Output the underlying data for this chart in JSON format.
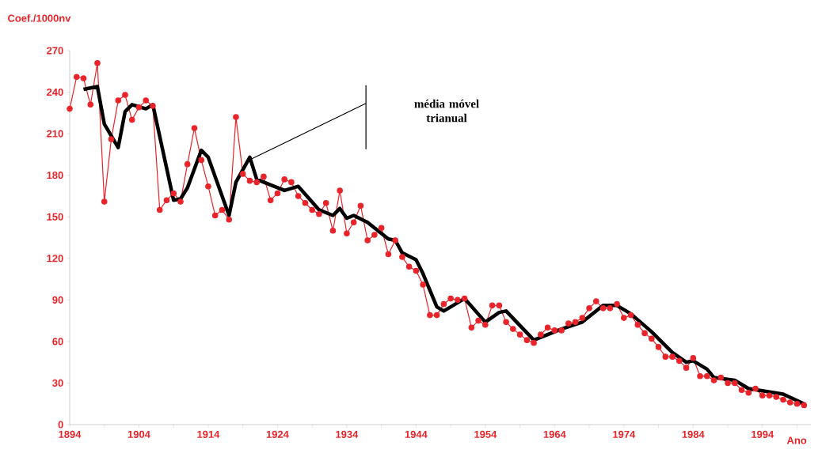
{
  "chart_data": {
    "type": "line",
    "ylabel": "Coef./1000nv",
    "xlabel": "Ano",
    "xlim": [
      1894,
      2001
    ],
    "ylim": [
      0,
      270
    ],
    "xticks": [
      1894,
      {
        "value": 1899,
        "label": null
      },
      1904,
      {
        "value": 1909,
        "label": null
      },
      1914,
      {
        "value": 1919,
        "label": null
      },
      1924,
      {
        "value": 1929,
        "label": null
      },
      1934,
      {
        "value": 1939,
        "label": null
      },
      1944,
      {
        "value": 1949,
        "label": null
      },
      1954,
      {
        "value": 1959,
        "label": null
      },
      1964,
      {
        "value": 1969,
        "label": null
      },
      1974,
      {
        "value": 1979,
        "label": null
      },
      1984,
      {
        "value": 1989,
        "label": null
      },
      1994,
      {
        "value": 1999,
        "label": null
      }
    ],
    "yticks": [
      0,
      30,
      60,
      90,
      120,
      150,
      180,
      210,
      240,
      270
    ],
    "annotations": [
      "média móvel trianual"
    ],
    "series": [
      {
        "color": "#e8242a",
        "marker": "circle",
        "x": [
          1894,
          1895,
          1896,
          1897,
          1898,
          1899,
          1900,
          1901,
          1902,
          1903,
          1904,
          1905,
          1906,
          1907,
          1908,
          1909,
          1910,
          1911,
          1912,
          1913,
          1914,
          1915,
          1916,
          1917,
          1918,
          1919,
          1920,
          1921,
          1922,
          1923,
          1924,
          1925,
          1926,
          1927,
          1928,
          1929,
          1930,
          1931,
          1932,
          1933,
          1934,
          1935,
          1936,
          1937,
          1938,
          1939,
          1940,
          1941,
          1942,
          1943,
          1944,
          1945,
          1946,
          1947,
          1948,
          1949,
          1950,
          1951,
          1952,
          1953,
          1954,
          1955,
          1956,
          1957,
          1958,
          1959,
          1960,
          1961,
          1962,
          1963,
          1964,
          1965,
          1966,
          1967,
          1968,
          1969,
          1970,
          1971,
          1972,
          1973,
          1974,
          1975,
          1976,
          1977,
          1978,
          1979,
          1980,
          1981,
          1982,
          1983,
          1984,
          1985,
          1986,
          1987,
          1988,
          1989,
          1990,
          1991,
          1992,
          1993,
          1994,
          1995,
          1996,
          1997,
          1998,
          1999,
          2000
        ],
        "values": [
          228,
          251,
          250,
          231,
          261,
          161,
          206,
          234,
          238,
          220,
          229,
          234,
          230,
          155,
          162,
          167,
          161,
          188,
          214,
          191,
          172,
          151,
          155,
          148,
          222,
          181,
          176,
          175,
          179,
          162,
          167,
          177,
          175,
          165,
          160,
          155,
          152,
          160,
          140,
          169,
          138,
          146,
          158,
          133,
          137,
          142,
          123,
          133,
          121,
          114,
          111,
          101,
          79,
          79,
          87,
          91,
          90,
          91,
          70,
          75,
          72,
          86,
          86,
          74,
          69,
          65,
          61,
          59,
          65,
          70,
          68,
          68,
          73,
          74,
          77,
          84,
          89,
          84,
          84,
          87,
          77,
          79,
          72,
          66,
          62,
          56,
          49,
          49,
          46,
          41,
          48,
          35,
          35,
          32,
          34,
          30,
          30,
          25,
          23,
          26,
          21,
          21,
          20,
          18,
          16,
          15,
          14
        ]
      },
      {
        "color": "#000000",
        "marker": "none",
        "x": [
          1896,
          1898,
          1899,
          1901,
          1902,
          1903,
          1905,
          1906,
          1909,
          1910,
          1911,
          1913,
          1914,
          1917,
          1918,
          1920,
          1921,
          1925,
          1927,
          1930,
          1932,
          1933,
          1934,
          1935,
          1937,
          1940,
          1941,
          1942,
          1944,
          1945,
          1947,
          1948,
          1951,
          1954,
          1956,
          1957,
          1961,
          1965,
          1968,
          1971,
          1973,
          1975,
          1978,
          1981,
          1983,
          1984,
          1986,
          1987,
          1990,
          1992,
          1997,
          2000
        ],
        "values": [
          242,
          244,
          217,
          200,
          226,
          231,
          228,
          231,
          162,
          163,
          171,
          198,
          193,
          151,
          175,
          193,
          177,
          169,
          172,
          155,
          151,
          156,
          149,
          151,
          146,
          134,
          133,
          124,
          119,
          109,
          85,
          82,
          91,
          74,
          81,
          82,
          61,
          69,
          74,
          86,
          86,
          80,
          67,
          52,
          45,
          46,
          40,
          34,
          32,
          26,
          22,
          15
        ]
      }
    ]
  }
}
